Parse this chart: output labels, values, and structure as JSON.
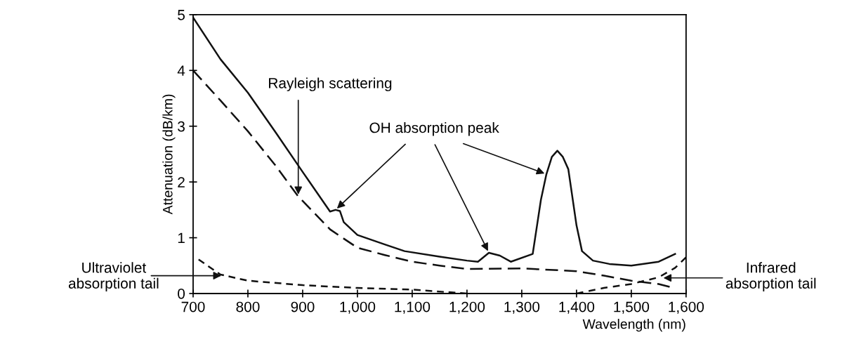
{
  "chart_data": {
    "type": "line",
    "xlabel": "Wavelength (nm)",
    "ylabel": "Attenuation (dB/km)",
    "xlim": [
      700,
      1600
    ],
    "ylim": [
      0,
      5
    ],
    "xticks": [
      700,
      800,
      900,
      {
        "value": 1000,
        "label": "1,000"
      },
      {
        "value": 1100,
        "label": "1,100"
      },
      {
        "value": 1200,
        "label": "1,200"
      },
      {
        "value": 1300,
        "label": "1,300"
      },
      {
        "value": 1400,
        "label": "1,400"
      },
      {
        "value": 1500,
        "label": "1,500"
      },
      {
        "value": 1600,
        "label": "1,600"
      }
    ],
    "yticks": [
      0,
      1,
      2,
      3,
      4,
      5
    ],
    "grid": false,
    "legend": false,
    "marker": "none",
    "series": [
      {
        "color": "#111111",
        "line_style": "solid",
        "x": [
          700,
          750,
          800,
          850,
          900,
          950,
          960,
          968,
          975,
          1000,
          1050,
          1086,
          1150,
          1200,
          1220,
          1240,
          1260,
          1280,
          1320,
          1335,
          1345,
          1355,
          1365,
          1375,
          1385,
          1400,
          1410,
          1430,
          1460,
          1500,
          1550,
          1580
        ],
        "values": [
          4.95,
          4.2,
          3.6,
          2.9,
          2.18,
          1.47,
          1.5,
          1.48,
          1.28,
          1.05,
          0.88,
          0.76,
          0.66,
          0.59,
          0.57,
          0.73,
          0.68,
          0.57,
          0.71,
          1.68,
          2.14,
          2.45,
          2.56,
          2.45,
          2.23,
          1.22,
          0.76,
          0.59,
          0.53,
          0.5,
          0.57,
          0.71
        ]
      },
      {
        "color": "#111111",
        "line_style": "dashed",
        "x": [
          700,
          750,
          800,
          850,
          892,
          900,
          950,
          1000,
          1050,
          1100,
          1150,
          1200,
          1300,
          1400,
          1450,
          1500,
          1550,
          1570
        ],
        "values": [
          4.0,
          3.46,
          2.91,
          2.3,
          1.74,
          1.66,
          1.15,
          0.82,
          0.69,
          0.57,
          0.5,
          0.44,
          0.45,
          0.4,
          0.32,
          0.23,
          0.17,
          0.12
        ]
      },
      {
        "color": "#111111",
        "line_style": "dotted",
        "x": [
          710,
          750,
          800,
          900,
          1000,
          1100,
          1200
        ],
        "values": [
          0.61,
          0.34,
          0.23,
          0.15,
          0.1,
          0.07,
          0.0
        ]
      },
      {
        "color": "#111111",
        "line_style": "dotted",
        "x": [
          1400,
          1450,
          1500,
          1550,
          1580,
          1600
        ],
        "values": [
          0.0,
          0.1,
          0.17,
          0.29,
          0.46,
          0.65
        ]
      }
    ],
    "annotations": [
      {
        "text": "Rayleigh scattering",
        "x": 892,
        "y": 1.74
      },
      {
        "text": "OH absorption peak",
        "x": 1345,
        "y": 2.14
      },
      {
        "text": "Ultraviolet\nabsorption tail",
        "x": 755,
        "y": 0.32
      },
      {
        "text": "Infrared\nabsorption tail",
        "x": 1555,
        "y": 0.28
      }
    ]
  }
}
